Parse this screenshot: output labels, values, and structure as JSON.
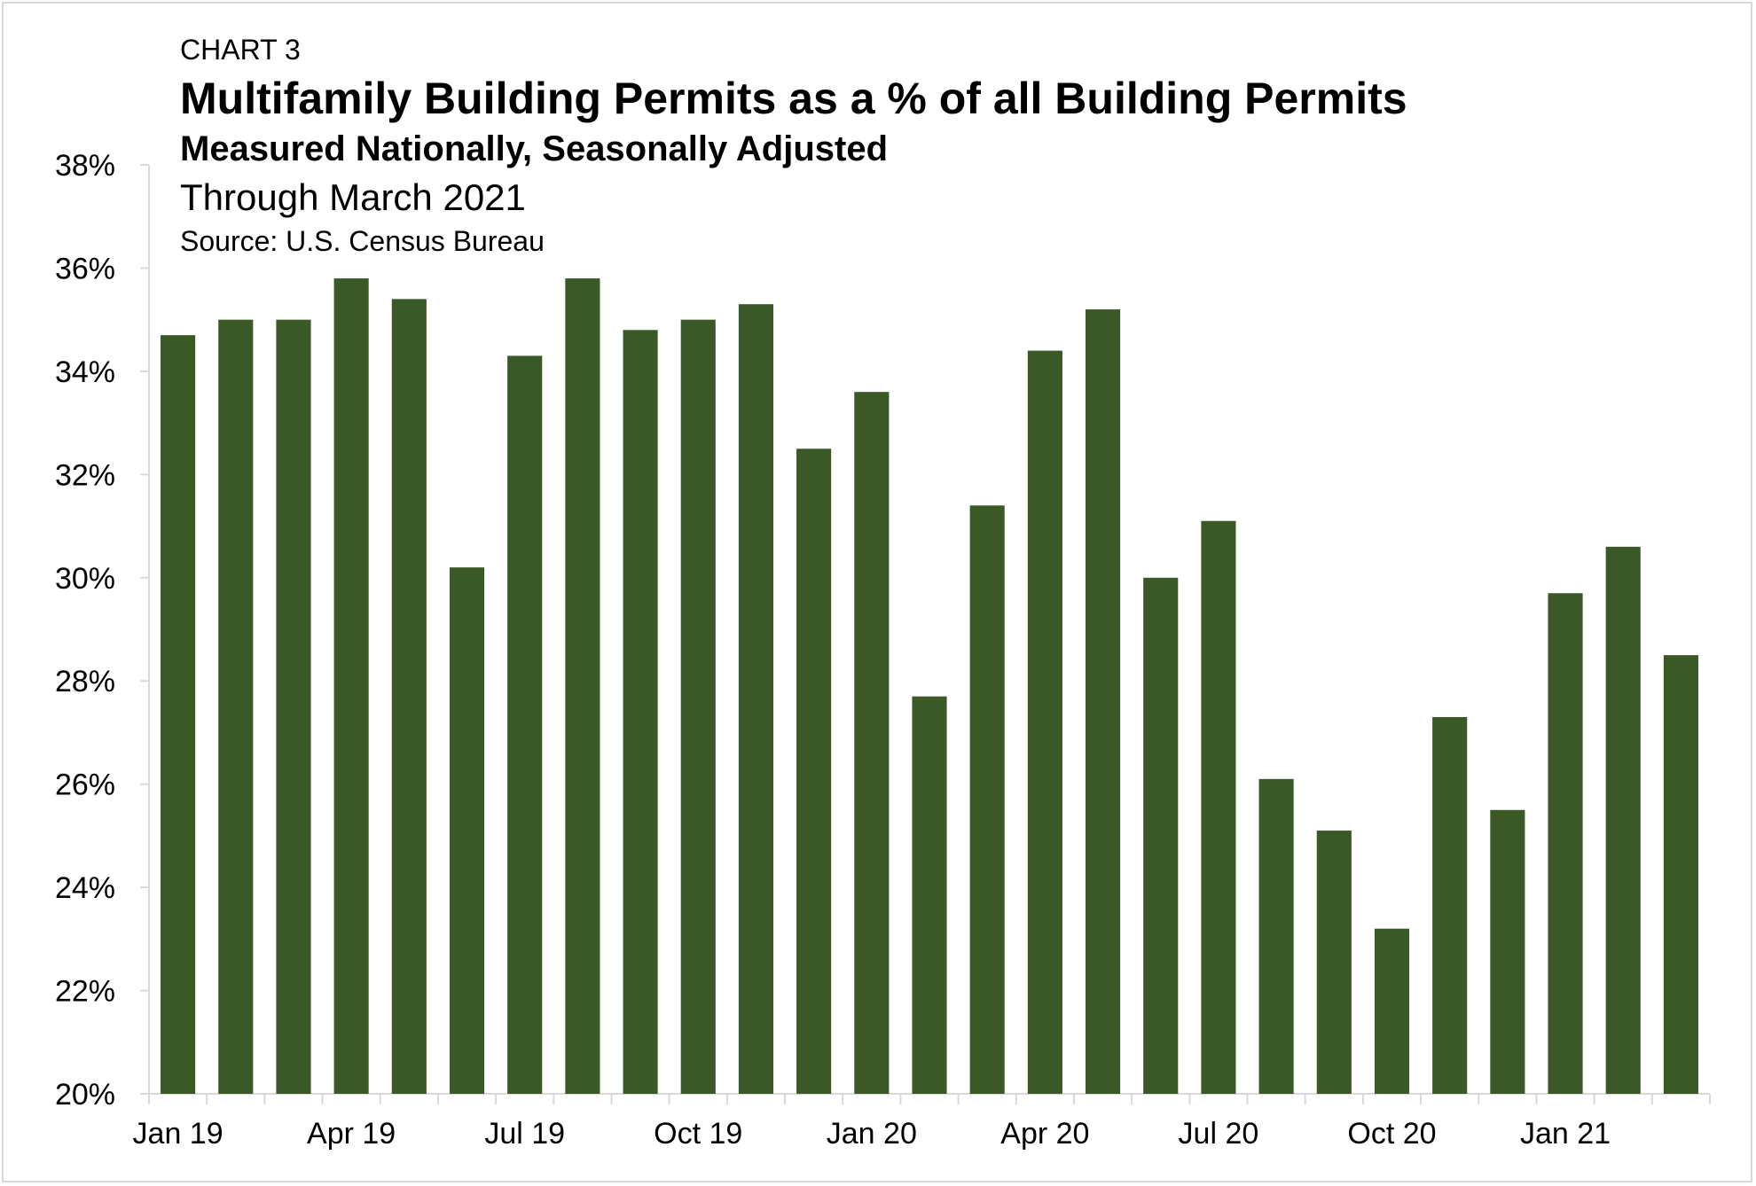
{
  "header": {
    "label": "CHART 3",
    "title": "Multifamily Building Permits as a % of all Building Permits",
    "subtitle": "Measured Nationally, Seasonally Adjusted",
    "period": "Through March 2021",
    "source": "Source: U.S. Census Bureau"
  },
  "chart_data": {
    "type": "bar",
    "categories": [
      "Jan 19",
      "Feb 19",
      "Mar 19",
      "Apr 19",
      "May 19",
      "Jun 19",
      "Jul 19",
      "Aug 19",
      "Sep 19",
      "Oct 19",
      "Nov 19",
      "Dec 19",
      "Jan 20",
      "Feb 20",
      "Mar 20",
      "Apr 20",
      "May 20",
      "Jun 20",
      "Jul 20",
      "Aug 20",
      "Sep 20",
      "Oct 20",
      "Nov 20",
      "Dec 20",
      "Jan 21",
      "Feb 21",
      "Mar 21"
    ],
    "tick_labels": [
      "Jan 19",
      "Apr 19",
      "Jul 19",
      "Oct 19",
      "Jan 20",
      "Apr 20",
      "Jul 20",
      "Oct 20",
      "Jan 21"
    ],
    "values": [
      34.7,
      35.0,
      35.0,
      35.8,
      35.4,
      30.2,
      34.3,
      35.8,
      34.8,
      35.0,
      35.3,
      32.5,
      33.6,
      27.7,
      31.4,
      34.4,
      35.2,
      30.0,
      31.1,
      26.1,
      25.1,
      23.2,
      27.3,
      25.5,
      29.7,
      30.6,
      28.5
    ],
    "ylim": [
      20,
      38
    ],
    "yticks": [
      "20%",
      "22%",
      "24%",
      "26%",
      "28%",
      "30%",
      "32%",
      "34%",
      "36%",
      "38%"
    ],
    "bar_color": "#3b5827",
    "axis_color": "#d9d9d9"
  }
}
